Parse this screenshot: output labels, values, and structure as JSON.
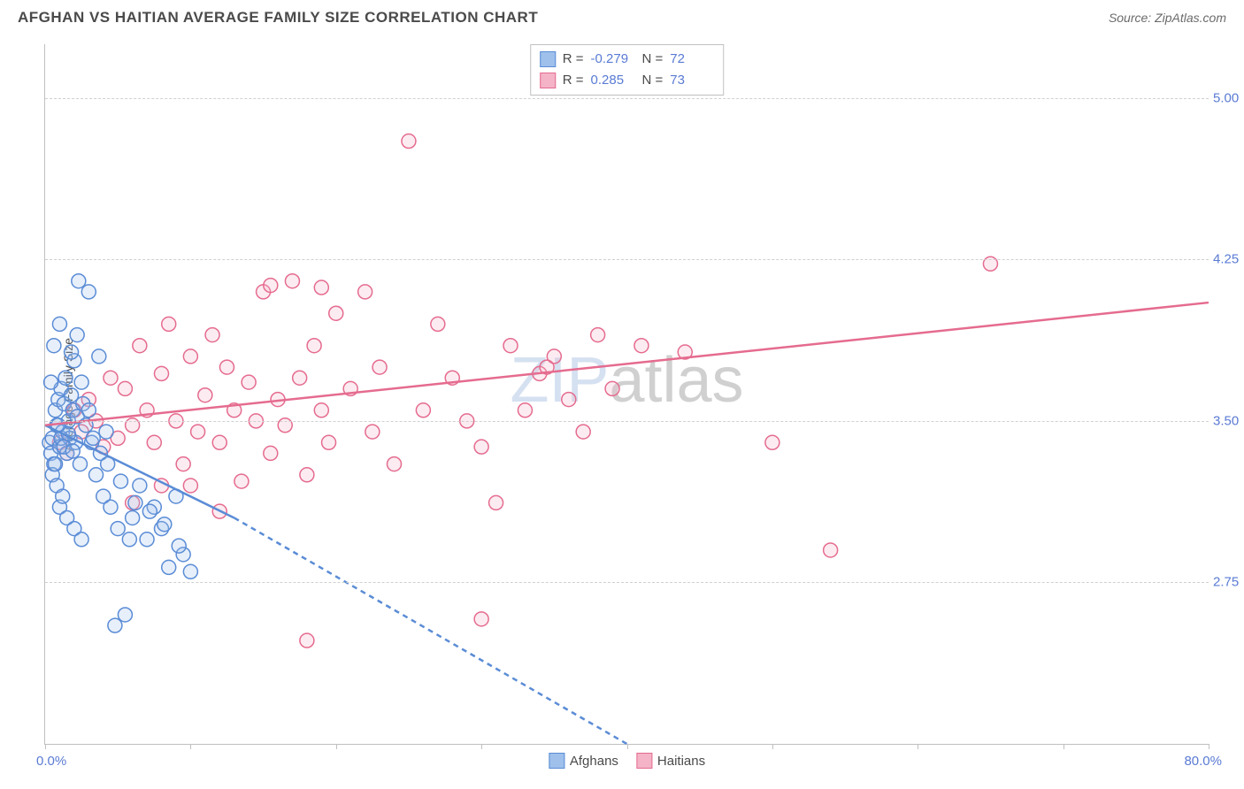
{
  "header": {
    "title": "AFGHAN VS HAITIAN AVERAGE FAMILY SIZE CORRELATION CHART",
    "source": "Source: ZipAtlas.com"
  },
  "chart": {
    "type": "scatter",
    "y_axis_title": "Average Family Size",
    "xlim": [
      0,
      80
    ],
    "ylim": [
      2.0,
      5.25
    ],
    "x_label_min": "0.0%",
    "x_label_max": "80.0%",
    "x_tick_positions": [
      0,
      10,
      20,
      30,
      40,
      50,
      60,
      70,
      80
    ],
    "y_gridlines": [
      2.75,
      3.5,
      4.25,
      5.0
    ],
    "y_tick_labels": [
      "2.75",
      "3.50",
      "4.25",
      "5.00"
    ],
    "grid_color": "#d0d0d0",
    "axis_color": "#c0c0c0",
    "background_color": "#ffffff",
    "marker_radius": 8,
    "marker_stroke_width": 1.5,
    "marker_fill_opacity": 0.25,
    "trend_line_width": 2.5,
    "watermark": {
      "zip": "ZIP",
      "atlas": "atlas"
    }
  },
  "series": {
    "afghans": {
      "label": "Afghans",
      "color_stroke": "#5a8cd6",
      "color_fill": "#9ec0eb",
      "r_value": "-0.279",
      "n_value": "72",
      "trend": {
        "x1": 0,
        "y1": 3.48,
        "x2_solid": 13,
        "y2_solid": 3.05,
        "x2_dashed": 40,
        "y2_dashed": 2.0
      },
      "points": [
        [
          0.3,
          3.4
        ],
        [
          0.4,
          3.35
        ],
        [
          0.5,
          3.42
        ],
        [
          0.6,
          3.3
        ],
        [
          0.7,
          3.55
        ],
        [
          0.8,
          3.48
        ],
        [
          0.9,
          3.6
        ],
        [
          1.0,
          3.38
        ],
        [
          1.1,
          3.65
        ],
        [
          1.2,
          3.45
        ],
        [
          1.3,
          3.58
        ],
        [
          1.4,
          3.7
        ],
        [
          1.5,
          3.35
        ],
        [
          1.6,
          3.5
        ],
        [
          1.7,
          3.42
        ],
        [
          1.8,
          3.62
        ],
        [
          1.9,
          3.55
        ],
        [
          2.0,
          3.78
        ],
        [
          2.1,
          3.4
        ],
        [
          2.2,
          3.9
        ],
        [
          2.3,
          4.15
        ],
        [
          2.4,
          3.3
        ],
        [
          2.5,
          3.68
        ],
        [
          2.6,
          3.58
        ],
        [
          0.5,
          3.25
        ],
        [
          0.8,
          3.2
        ],
        [
          1.0,
          3.1
        ],
        [
          1.2,
          3.15
        ],
        [
          1.5,
          3.05
        ],
        [
          2.0,
          3.0
        ],
        [
          2.5,
          2.95
        ],
        [
          3.0,
          3.55
        ],
        [
          3.2,
          3.4
        ],
        [
          3.5,
          3.25
        ],
        [
          3.7,
          3.8
        ],
        [
          4.0,
          3.15
        ],
        [
          4.2,
          3.45
        ],
        [
          4.5,
          3.1
        ],
        [
          5.0,
          3.0
        ],
        [
          5.5,
          2.6
        ],
        [
          5.8,
          2.95
        ],
        [
          6.0,
          3.05
        ],
        [
          6.5,
          3.2
        ],
        [
          7.0,
          2.95
        ],
        [
          7.5,
          3.1
        ],
        [
          8.0,
          3.0
        ],
        [
          8.5,
          2.82
        ],
        [
          9.0,
          3.15
        ],
        [
          9.5,
          2.88
        ],
        [
          10.0,
          2.8
        ],
        [
          4.8,
          2.55
        ],
        [
          3.0,
          4.1
        ],
        [
          1.0,
          3.95
        ],
        [
          0.6,
          3.85
        ],
        [
          1.8,
          3.82
        ],
        [
          2.2,
          3.52
        ],
        [
          0.4,
          3.68
        ],
        [
          0.9,
          3.48
        ],
        [
          1.1,
          3.42
        ],
        [
          1.3,
          3.38
        ],
        [
          0.7,
          3.3
        ],
        [
          1.6,
          3.44
        ],
        [
          1.9,
          3.36
        ],
        [
          2.8,
          3.48
        ],
        [
          3.3,
          3.42
        ],
        [
          3.8,
          3.35
        ],
        [
          4.3,
          3.3
        ],
        [
          5.2,
          3.22
        ],
        [
          6.2,
          3.12
        ],
        [
          7.2,
          3.08
        ],
        [
          8.2,
          3.02
        ],
        [
          9.2,
          2.92
        ]
      ]
    },
    "haitians": {
      "label": "Haitians",
      "color_stroke": "#e56b8f",
      "color_fill": "#f4b3c7",
      "r_value": "0.285",
      "n_value": "73",
      "trend": {
        "x1": 0,
        "y1": 3.48,
        "x2_solid": 80,
        "y2_solid": 4.05
      },
      "points": [
        [
          1,
          3.4
        ],
        [
          1.5,
          3.35
        ],
        [
          2,
          3.55
        ],
        [
          2.5,
          3.45
        ],
        [
          3,
          3.6
        ],
        [
          3.5,
          3.5
        ],
        [
          4,
          3.38
        ],
        [
          4.5,
          3.7
        ],
        [
          5,
          3.42
        ],
        [
          5.5,
          3.65
        ],
        [
          6,
          3.48
        ],
        [
          6.5,
          3.85
        ],
        [
          7,
          3.55
        ],
        [
          7.5,
          3.4
        ],
        [
          8,
          3.72
        ],
        [
          8.5,
          3.95
        ],
        [
          9,
          3.5
        ],
        [
          9.5,
          3.3
        ],
        [
          10,
          3.8
        ],
        [
          10.5,
          3.45
        ],
        [
          11,
          3.62
        ],
        [
          11.5,
          3.9
        ],
        [
          12,
          3.4
        ],
        [
          12.5,
          3.75
        ],
        [
          13,
          3.55
        ],
        [
          13.5,
          3.22
        ],
        [
          14,
          3.68
        ],
        [
          14.5,
          3.5
        ],
        [
          15,
          4.1
        ],
        [
          15.5,
          3.35
        ],
        [
          16,
          3.6
        ],
        [
          16.5,
          3.48
        ],
        [
          17,
          4.15
        ],
        [
          17.5,
          3.7
        ],
        [
          18,
          3.25
        ],
        [
          18.5,
          3.85
        ],
        [
          19,
          3.55
        ],
        [
          19.5,
          3.4
        ],
        [
          20,
          4.0
        ],
        [
          21,
          3.65
        ],
        [
          22,
          4.1
        ],
        [
          22.5,
          3.45
        ],
        [
          23,
          3.75
        ],
        [
          18,
          2.48
        ],
        [
          24,
          3.3
        ],
        [
          25,
          4.8
        ],
        [
          26,
          3.55
        ],
        [
          27,
          3.95
        ],
        [
          28,
          3.7
        ],
        [
          29,
          3.5
        ],
        [
          30,
          3.38
        ],
        [
          30,
          2.58
        ],
        [
          31,
          3.12
        ],
        [
          32,
          3.85
        ],
        [
          33,
          3.55
        ],
        [
          34,
          3.72
        ],
        [
          35,
          3.8
        ],
        [
          36,
          3.6
        ],
        [
          37,
          3.45
        ],
        [
          38,
          3.9
        ],
        [
          34.5,
          3.75
        ],
        [
          39,
          3.65
        ],
        [
          41,
          3.85
        ],
        [
          44,
          3.82
        ],
        [
          50,
          3.4
        ],
        [
          54,
          2.9
        ],
        [
          65,
          4.23
        ],
        [
          10,
          3.2
        ],
        [
          12,
          3.08
        ],
        [
          19,
          4.12
        ],
        [
          15.5,
          4.13
        ],
        [
          8,
          3.2
        ],
        [
          6,
          3.12
        ]
      ]
    }
  },
  "legend_top": {
    "r_label": "R =",
    "n_label": "N ="
  }
}
